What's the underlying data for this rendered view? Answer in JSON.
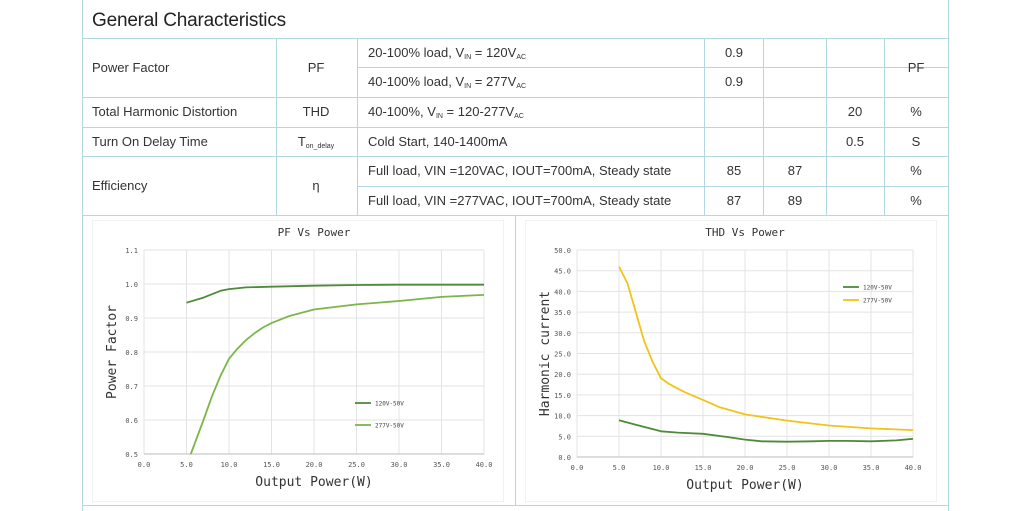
{
  "section_title": "General Characteristics",
  "table": {
    "rows": [
      {
        "param": "Power Factor",
        "symbol": "PF",
        "conditions": [
          {
            "pre": "20-100% load, V",
            "sub": "IN",
            "mid": " = 120V",
            "sub2": "AC",
            "min": "0.9",
            "typ": "",
            "max": ""
          },
          {
            "pre": "40-100% load, V",
            "sub": "IN",
            "mid": " = 277V",
            "sub2": "AC",
            "min": "0.9",
            "typ": "",
            "max": ""
          }
        ],
        "unit": "PF"
      },
      {
        "param": "Total Harmonic Distortion",
        "symbol": "THD",
        "conditions": [
          {
            "pre": "40-100%, V",
            "sub": "IN",
            "mid": " = 120-277V",
            "sub2": "AC",
            "min": "",
            "typ": "",
            "max": "20"
          }
        ],
        "unit": "%"
      },
      {
        "param": "Turn On Delay Time",
        "symbol": "T",
        "symbol_sub": "on_delay",
        "conditions": [
          {
            "pre": "Cold Start, 140-1400mA",
            "sub": "",
            "mid": "",
            "sub2": "",
            "min": "",
            "typ": "",
            "max": "0.5"
          }
        ],
        "unit": "S"
      },
      {
        "param": "Efficiency",
        "symbol": "η",
        "conditions": [
          {
            "pre": "Full load, VIN =120VAC, IOUT=700mA, Steady state",
            "sub": "",
            "mid": "",
            "sub2": "",
            "min": "85",
            "typ": "87",
            "max": "",
            "unit": "%"
          },
          {
            "pre": "Full load, VIN =277VAC, IOUT=700mA, Steady state",
            "sub": "",
            "mid": "",
            "sub2": "",
            "min": "87",
            "typ": "89",
            "max": "",
            "unit": "%"
          }
        ]
      }
    ]
  },
  "chart_data": [
    {
      "type": "line",
      "title": "PF Vs Power",
      "xlabel": "Output Power(W)",
      "ylabel": "Power Factor",
      "xlim": [
        0,
        40
      ],
      "ylim": [
        0.5,
        1.1
      ],
      "xticks": [
        "0.0",
        "5.0",
        "10.0",
        "15.0",
        "20.0",
        "25.0",
        "30.0",
        "35.0",
        "40.0"
      ],
      "yticks": [
        "0.5",
        "0.6",
        "0.7",
        "0.8",
        "0.9",
        "1.0",
        "1.1"
      ],
      "grid": true,
      "legend": "center-right",
      "series": [
        {
          "name": "120V-50V",
          "color": "#4f8a3a",
          "x": [
            5,
            7,
            9,
            10,
            12,
            15,
            20,
            25,
            30,
            35,
            40
          ],
          "y": [
            0.945,
            0.96,
            0.98,
            0.985,
            0.99,
            0.992,
            0.995,
            0.997,
            0.998,
            0.998,
            0.998
          ]
        },
        {
          "name": "277V-50V",
          "color": "#7ab648",
          "x": [
            5.5,
            7,
            8,
            9,
            10,
            11,
            12,
            13,
            14,
            15,
            17,
            20,
            25,
            30,
            35,
            40
          ],
          "y": [
            0.5,
            0.6,
            0.67,
            0.73,
            0.78,
            0.81,
            0.835,
            0.855,
            0.872,
            0.885,
            0.905,
            0.925,
            0.94,
            0.95,
            0.962,
            0.968
          ]
        }
      ]
    },
    {
      "type": "line",
      "title": "THD Vs Power",
      "xlabel": "Output Power(W)",
      "ylabel": "Harmonic current",
      "xlim": [
        0,
        40
      ],
      "ylim": [
        0,
        50
      ],
      "xticks": [
        "0.0",
        "5.0",
        "10.0",
        "15.0",
        "20.0",
        "25.0",
        "30.0",
        "35.0",
        "40.0"
      ],
      "yticks": [
        "0.0",
        "5.0",
        "10.0",
        "15.0",
        "20.0",
        "25.0",
        "30.0",
        "35.0",
        "40.0",
        "45.0",
        "50.0"
      ],
      "grid": true,
      "legend": "top-right",
      "series": [
        {
          "name": "120V-50V",
          "color": "#4f8a3a",
          "x": [
            5,
            7,
            10,
            12,
            15,
            18,
            20,
            22,
            25,
            28,
            30,
            32,
            35,
            38,
            40
          ],
          "y": [
            8.9,
            7.8,
            6.2,
            5.9,
            5.6,
            4.8,
            4.2,
            3.8,
            3.7,
            3.8,
            3.9,
            3.9,
            3.8,
            4.0,
            4.4
          ]
        },
        {
          "name": "277V-50V",
          "color": "#f0c419",
          "x": [
            5,
            6,
            7,
            8,
            9,
            10,
            11,
            12,
            13,
            15,
            17,
            20,
            25,
            30,
            35,
            40
          ],
          "y": [
            46,
            42,
            35,
            28,
            23,
            19,
            17.6,
            16.5,
            15.5,
            13.8,
            12.0,
            10.3,
            8.8,
            7.6,
            6.9,
            6.5
          ]
        }
      ]
    }
  ]
}
